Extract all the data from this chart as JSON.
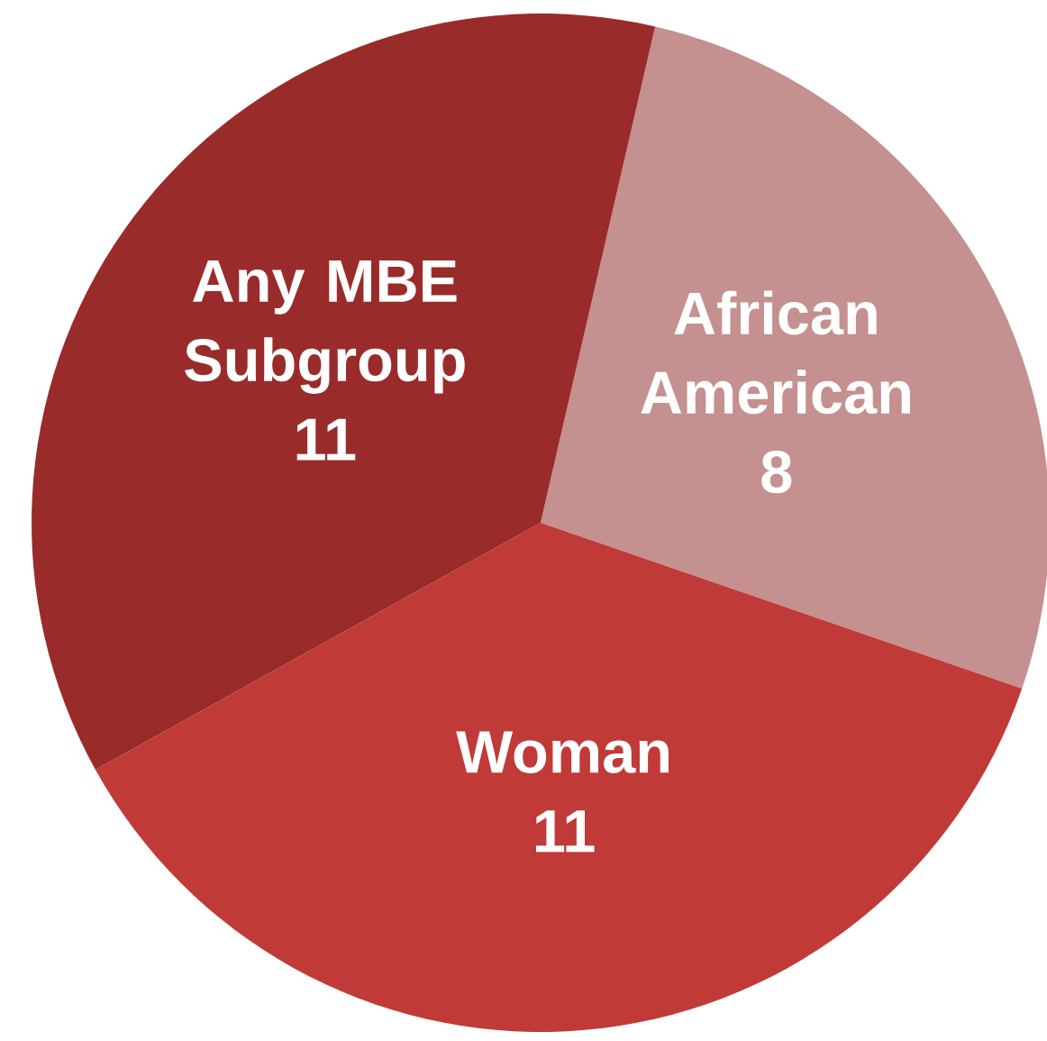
{
  "chart_data": {
    "type": "pie",
    "categories": [
      "African American",
      "Woman",
      "Any MBE Subgroup"
    ],
    "values": [
      8,
      11,
      11
    ],
    "colors": [
      "#c49090",
      "#c03a38",
      "#9a2b2b"
    ],
    "data_labels": true
  }
}
